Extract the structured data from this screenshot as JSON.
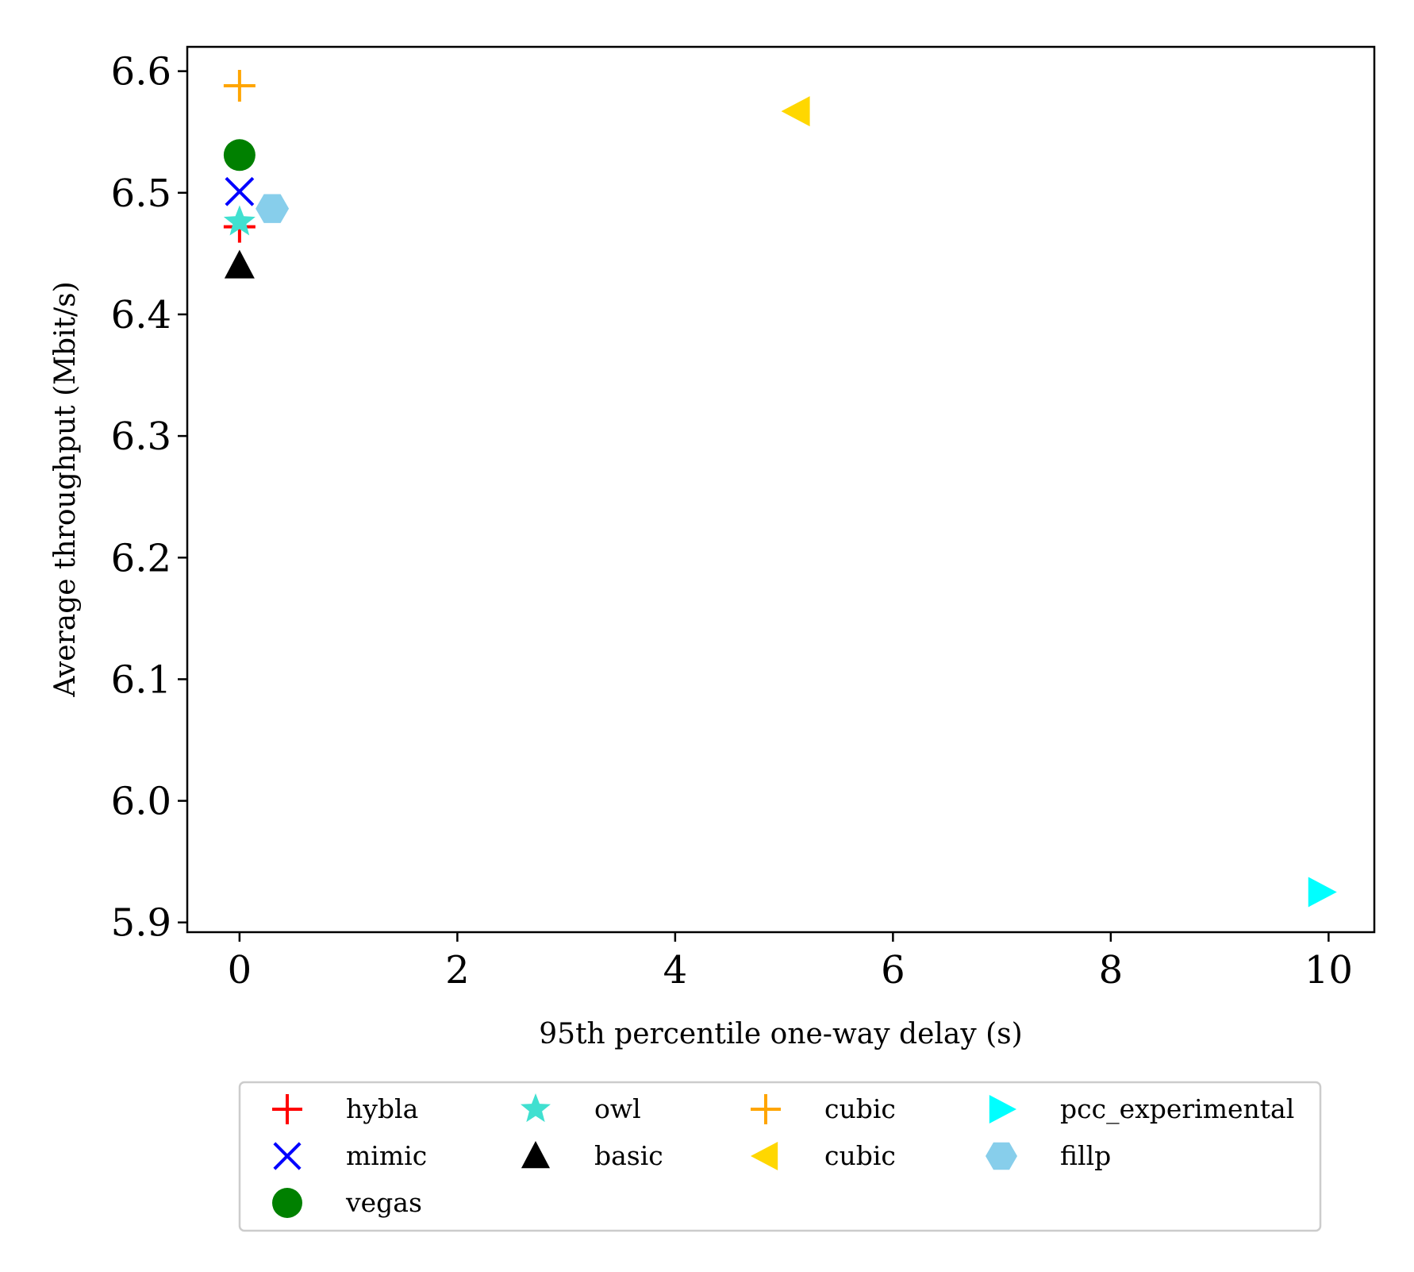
{
  "chart_data": {
    "type": "scatter",
    "title": "",
    "xlabel": "95th percentile one-way delay (s)",
    "ylabel": "Average throughput (Mbit/s)",
    "xlim": [
      -0.48,
      10.42
    ],
    "ylim": [
      5.892,
      6.62
    ],
    "xticks": [
      0,
      2,
      4,
      6,
      8,
      10
    ],
    "xtick_labels": [
      "0",
      "2",
      "4",
      "6",
      "8",
      "10"
    ],
    "yticks": [
      5.9,
      6.0,
      6.1,
      6.2,
      6.3,
      6.4,
      6.5,
      6.6
    ],
    "ytick_labels": [
      "5.9",
      "6.0",
      "6.1",
      "6.2",
      "6.3",
      "6.4",
      "6.5",
      "6.6"
    ],
    "grid": false,
    "legend_position": "below-center",
    "series": [
      {
        "name": "hybla",
        "marker": "plus",
        "color": "#ff0000",
        "points": [
          {
            "x": 0.0,
            "y": 6.472
          }
        ]
      },
      {
        "name": "mimic",
        "marker": "x",
        "color": "#0000ff",
        "points": [
          {
            "x": 0.0,
            "y": 6.501
          }
        ]
      },
      {
        "name": "vegas",
        "marker": "circle",
        "color": "#008000",
        "points": [
          {
            "x": 0.0,
            "y": 6.531
          }
        ]
      },
      {
        "name": "owl",
        "marker": "star",
        "color": "#40e0d0",
        "points": [
          {
            "x": 0.0,
            "y": 6.476
          }
        ]
      },
      {
        "name": "basic",
        "marker": "triangle-up",
        "color": "#000000",
        "points": [
          {
            "x": 0.0,
            "y": 6.44
          }
        ]
      },
      {
        "name": "cubic",
        "marker": "plus",
        "color": "#ffa500",
        "points": [
          {
            "x": 0.0,
            "y": 6.588
          }
        ]
      },
      {
        "name": "cubic",
        "marker": "triangle-left",
        "color": "#ffd700",
        "points": [
          {
            "x": 5.12,
            "y": 6.567
          }
        ]
      },
      {
        "name": "pcc_experimental",
        "marker": "triangle-right",
        "color": "#00ffff",
        "points": [
          {
            "x": 9.93,
            "y": 5.925
          }
        ]
      },
      {
        "name": "fillp",
        "marker": "hexagon",
        "color": "#87ceeb",
        "points": [
          {
            "x": 0.3,
            "y": 6.487
          }
        ]
      }
    ]
  }
}
